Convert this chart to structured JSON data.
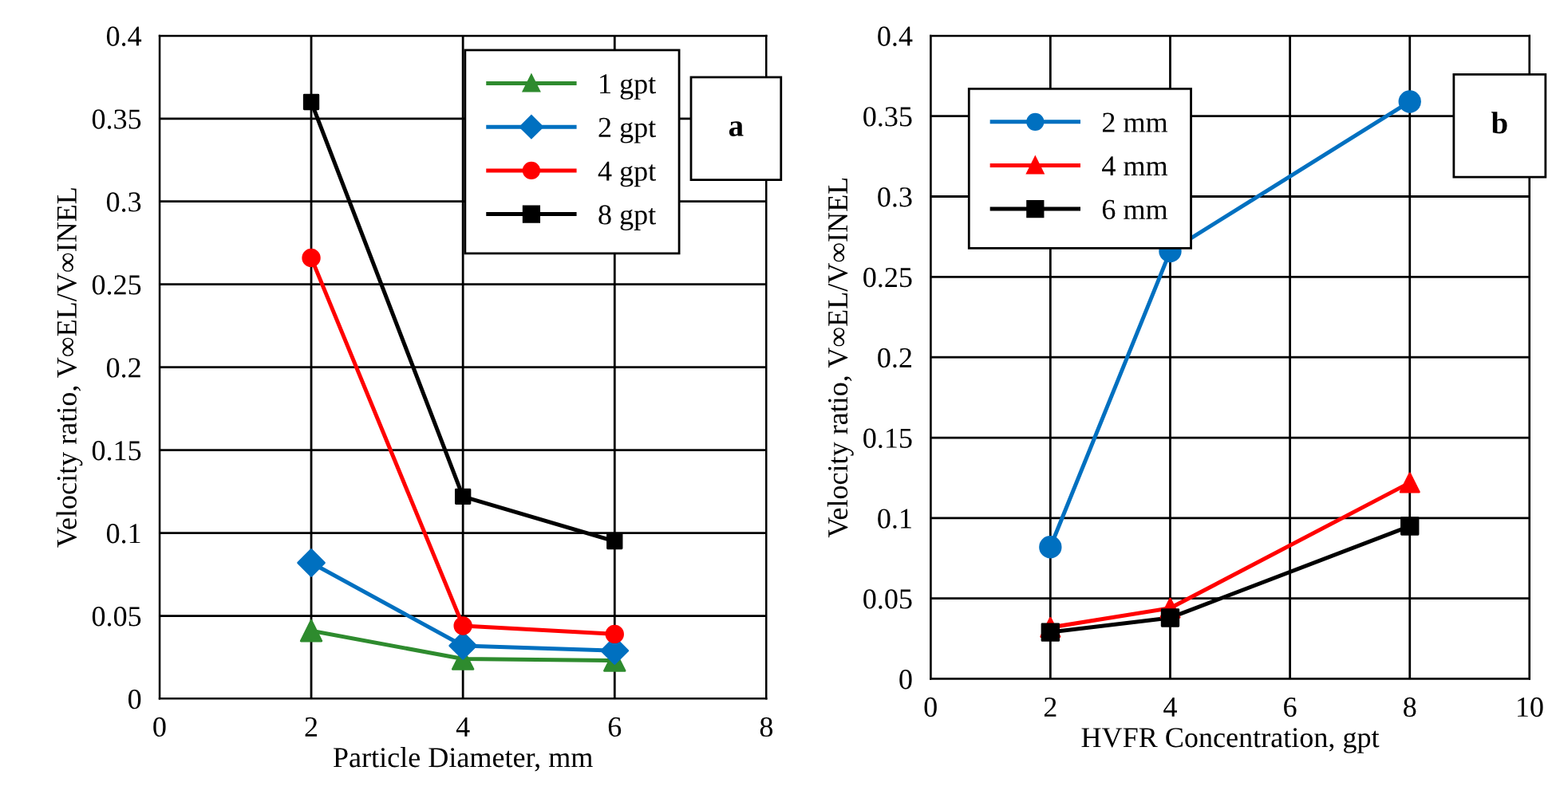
{
  "chart_data": [
    {
      "type": "line",
      "xlabel": "Particle Diameter, mm",
      "ylabel": "Velocity ratio, V∞EL/V∞INEL",
      "x": [
        2,
        4,
        6
      ],
      "series": [
        {
          "name": "1 gpt",
          "color": "#2e8b2e",
          "marker": "triangle",
          "values": [
            0.041,
            0.024,
            0.023
          ]
        },
        {
          "name": "2 gpt",
          "color": "#0070c0",
          "marker": "diamond",
          "values": [
            0.082,
            0.032,
            0.029
          ]
        },
        {
          "name": "4 gpt",
          "color": "#ff0000",
          "marker": "circle",
          "values": [
            0.266,
            0.044,
            0.039
          ]
        },
        {
          "name": "8 gpt",
          "color": "#000000",
          "marker": "square",
          "values": [
            0.36,
            0.122,
            0.095
          ]
        }
      ],
      "xlim": [
        0,
        8
      ],
      "xticks": [
        0,
        2,
        4,
        6,
        8
      ],
      "ylim": [
        0,
        0.4
      ],
      "yticks": [
        0,
        0.05,
        0.1,
        0.15,
        0.2,
        0.25,
        0.3,
        0.35,
        0.4
      ],
      "grid": true,
      "legend": "top right",
      "line_style": "solid",
      "annotations": [
        "a"
      ]
    },
    {
      "type": "line",
      "xlabel": "HVFR Concentration, gpt",
      "ylabel": "Velocity ratio, V∞EL/V∞INEL",
      "x": [
        2,
        4,
        8
      ],
      "series": [
        {
          "name": "2 mm",
          "color": "#0070c0",
          "marker": "circle",
          "values": [
            0.082,
            0.266,
            0.359
          ]
        },
        {
          "name": "4 mm",
          "color": "#ff0000",
          "marker": "triangle",
          "values": [
            0.032,
            0.044,
            0.122
          ]
        },
        {
          "name": "6 mm",
          "color": "#000000",
          "marker": "square",
          "values": [
            0.029,
            0.038,
            0.095
          ]
        }
      ],
      "xlim": [
        0,
        10
      ],
      "xticks": [
        0,
        2,
        4,
        6,
        8,
        10
      ],
      "ylim": [
        0,
        0.4
      ],
      "yticks": [
        0,
        0.05,
        0.1,
        0.15,
        0.2,
        0.25,
        0.3,
        0.35,
        0.4
      ],
      "grid": true,
      "legend": "top left",
      "line_style": "solid",
      "annotations": [
        "b"
      ]
    }
  ]
}
